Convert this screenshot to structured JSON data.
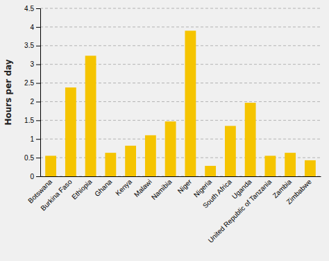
{
  "chart_data": {
    "type": "bar",
    "categories": [
      "Botswana",
      "Burkina Faso",
      "Ethiopia",
      "Ghana",
      "Kenya",
      "Malawi",
      "Namibia",
      "Niger",
      "Nigeria",
      "South Africa",
      "Uganda",
      "United Republic of Tanzania",
      "Zambia",
      "Zimbabwe"
    ],
    "values": [
      0.55,
      2.38,
      3.23,
      0.63,
      0.82,
      1.1,
      1.47,
      3.9,
      0.28,
      1.35,
      1.97,
      0.55,
      0.63,
      0.43
    ],
    "color": "#F5C400",
    "ylabel": "Hours per day",
    "ylim": [
      0,
      4.5
    ],
    "yticks": [
      0,
      0.5,
      1.0,
      1.5,
      2.0,
      2.5,
      3.0,
      3.5,
      4.0,
      4.5
    ],
    "grid": true
  }
}
